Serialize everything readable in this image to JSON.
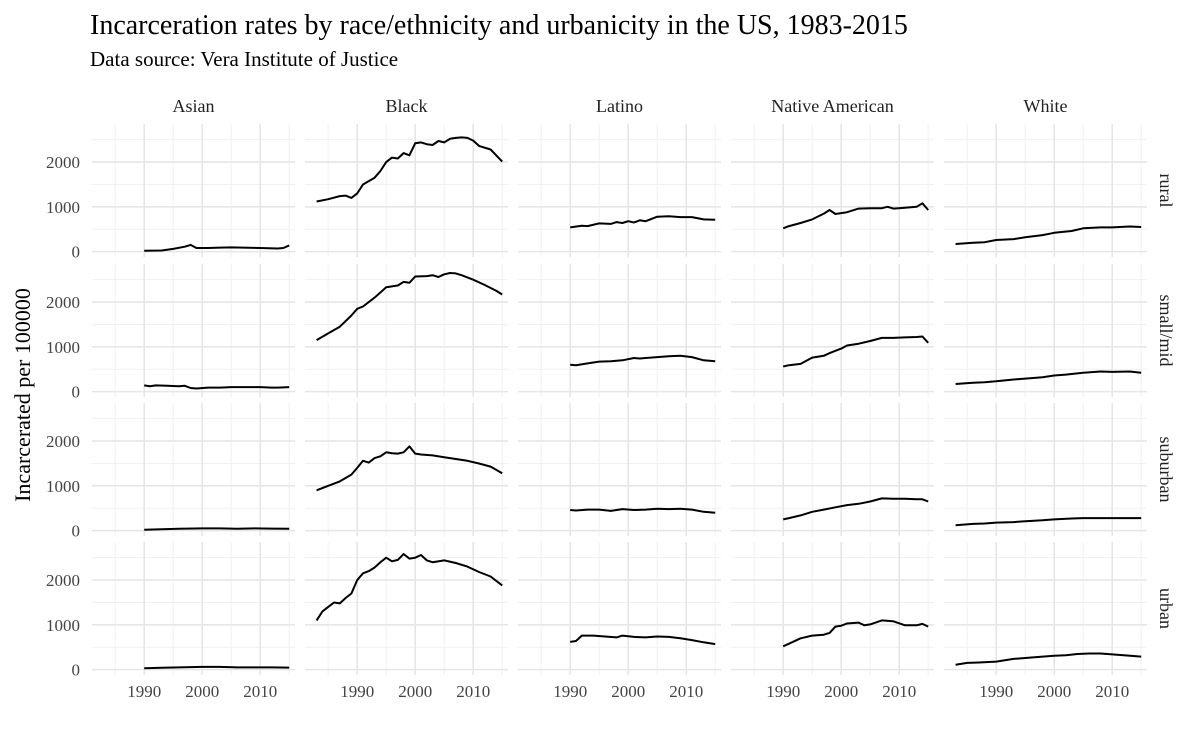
{
  "chart_data": {
    "type": "line",
    "title": "Incarceration rates by race/ethnicity and urbanicity in the US, 1983-2015",
    "subtitle": "Data source: Vera Institute of Justice",
    "xlabel": "",
    "ylabel": "Incarcerated per 100000",
    "xlim": [
      1981,
      2016
    ],
    "ylim": [
      -120,
      2850
    ],
    "x_ticks": [
      1990,
      2000,
      2010
    ],
    "y_ticks": [
      0,
      1000,
      2000
    ],
    "grid": true,
    "columns": [
      "Asian",
      "Black",
      "Latino",
      "Native American",
      "White"
    ],
    "rows": [
      "rural",
      "small/mid",
      "suburban",
      "urban"
    ],
    "panels": [
      {
        "row": "rural",
        "column": "Asian",
        "x": [
          1990,
          1993,
          1995,
          1997,
          1998,
          1999,
          2001,
          2003,
          2005,
          2007,
          2010,
          2013,
          2014,
          2015
        ],
        "y": [
          20,
          25,
          60,
          110,
          150,
          80,
          80,
          90,
          95,
          90,
          80,
          70,
          80,
          140
        ]
      },
      {
        "row": "rural",
        "column": "Black",
        "x": [
          1983,
          1985,
          1987,
          1988,
          1989,
          1990,
          1991,
          1993,
          1994,
          1995,
          1996,
          1997,
          1998,
          1999,
          2000,
          2001,
          2002,
          2003,
          2004,
          2005,
          2006,
          2007,
          2008,
          2009,
          2010,
          2011,
          2013,
          2015
        ],
        "y": [
          1120,
          1170,
          1240,
          1250,
          1200,
          1300,
          1500,
          1650,
          1800,
          2000,
          2100,
          2080,
          2200,
          2150,
          2420,
          2440,
          2400,
          2380,
          2470,
          2440,
          2520,
          2540,
          2550,
          2540,
          2480,
          2360,
          2280,
          2010
        ]
      },
      {
        "row": "rural",
        "column": "Latino",
        "x": [
          1990,
          1992,
          1993,
          1995,
          1997,
          1998,
          1999,
          2000,
          2001,
          2002,
          2003,
          2005,
          2007,
          2009,
          2011,
          2013,
          2015
        ],
        "y": [
          540,
          580,
          570,
          630,
          620,
          660,
          640,
          680,
          650,
          700,
          680,
          780,
          790,
          770,
          770,
          720,
          710
        ]
      },
      {
        "row": "rural",
        "column": "Native American",
        "x": [
          1990,
          1991,
          1993,
          1995,
          1997,
          1998,
          1999,
          2001,
          2003,
          2005,
          2007,
          2008,
          2009,
          2011,
          2013,
          2014,
          2015
        ],
        "y": [
          520,
          570,
          640,
          720,
          850,
          930,
          840,
          880,
          960,
          970,
          970,
          1000,
          960,
          980,
          1000,
          1080,
          930
        ]
      },
      {
        "row": "rural",
        "column": "White",
        "x": [
          1983,
          1986,
          1988,
          1990,
          1993,
          1995,
          1998,
          2000,
          2003,
          2005,
          2008,
          2010,
          2013,
          2015
        ],
        "y": [
          170,
          200,
          210,
          260,
          280,
          320,
          370,
          420,
          460,
          520,
          540,
          540,
          560,
          550
        ]
      },
      {
        "row": "small/mid",
        "column": "Asian",
        "x": [
          1990,
          1991,
          1992,
          1994,
          1996,
          1997,
          1998,
          1999,
          2001,
          2003,
          2005,
          2007,
          2010,
          2012,
          2013,
          2015
        ],
        "y": [
          140,
          120,
          140,
          130,
          120,
          130,
          80,
          70,
          90,
          90,
          100,
          100,
          100,
          90,
          90,
          100
        ]
      },
      {
        "row": "small/mid",
        "column": "Black",
        "x": [
          1983,
          1985,
          1987,
          1989,
          1990,
          1991,
          1993,
          1995,
          1997,
          1998,
          1999,
          2000,
          2002,
          2003,
          2004,
          2005,
          2006,
          2007,
          2008,
          2010,
          2012,
          2014,
          2015
        ],
        "y": [
          1150,
          1300,
          1450,
          1700,
          1850,
          1900,
          2100,
          2330,
          2370,
          2450,
          2430,
          2570,
          2580,
          2600,
          2560,
          2620,
          2650,
          2640,
          2600,
          2500,
          2380,
          2250,
          2170
        ]
      },
      {
        "row": "small/mid",
        "column": "Latino",
        "x": [
          1990,
          1991,
          1993,
          1995,
          1997,
          1999,
          2001,
          2002,
          2003,
          2005,
          2007,
          2009,
          2011,
          2013,
          2015
        ],
        "y": [
          600,
          590,
          630,
          670,
          680,
          700,
          750,
          740,
          750,
          770,
          790,
          800,
          770,
          700,
          680
        ]
      },
      {
        "row": "small/mid",
        "column": "Native American",
        "x": [
          1990,
          1991,
          1993,
          1995,
          1997,
          1998,
          2000,
          2001,
          2003,
          2005,
          2007,
          2009,
          2011,
          2013,
          2014,
          2015
        ],
        "y": [
          560,
          590,
          620,
          760,
          800,
          860,
          960,
          1030,
          1070,
          1130,
          1200,
          1200,
          1210,
          1220,
          1230,
          1090
        ]
      },
      {
        "row": "small/mid",
        "column": "White",
        "x": [
          1983,
          1986,
          1988,
          1990,
          1993,
          1995,
          1998,
          2000,
          2002,
          2005,
          2008,
          2010,
          2013,
          2015
        ],
        "y": [
          170,
          200,
          210,
          230,
          270,
          290,
          320,
          360,
          380,
          420,
          450,
          440,
          450,
          420
        ]
      },
      {
        "row": "suburban",
        "column": "Asian",
        "x": [
          1990,
          1993,
          1996,
          2000,
          2003,
          2006,
          2009,
          2012,
          2015
        ],
        "y": [
          20,
          30,
          40,
          50,
          50,
          40,
          50,
          45,
          40
        ]
      },
      {
        "row": "suburban",
        "column": "Black",
        "x": [
          1983,
          1985,
          1987,
          1989,
          1990,
          1991,
          1992,
          1993,
          1994,
          1995,
          1996,
          1997,
          1998,
          1999,
          2000,
          2001,
          2003,
          2005,
          2007,
          2009,
          2011,
          2013,
          2015
        ],
        "y": [
          900,
          1000,
          1100,
          1250,
          1400,
          1560,
          1520,
          1620,
          1660,
          1750,
          1730,
          1720,
          1750,
          1880,
          1720,
          1700,
          1680,
          1640,
          1600,
          1560,
          1500,
          1430,
          1280
        ]
      },
      {
        "row": "suburban",
        "column": "Latino",
        "x": [
          1990,
          1991,
          1993,
          1995,
          1997,
          1999,
          2001,
          2003,
          2005,
          2007,
          2009,
          2011,
          2013,
          2015
        ],
        "y": [
          460,
          450,
          470,
          470,
          440,
          480,
          460,
          470,
          490,
          480,
          490,
          470,
          420,
          400
        ]
      },
      {
        "row": "suburban",
        "column": "Native American",
        "x": [
          1990,
          1991,
          1993,
          1995,
          1997,
          1999,
          2001,
          2003,
          2005,
          2007,
          2009,
          2011,
          2013,
          2014,
          2015
        ],
        "y": [
          250,
          280,
          340,
          420,
          470,
          520,
          570,
          600,
          650,
          720,
          710,
          710,
          700,
          700,
          650
        ]
      },
      {
        "row": "suburban",
        "column": "White",
        "x": [
          1983,
          1986,
          1988,
          1990,
          1993,
          1995,
          1998,
          2000,
          2003,
          2005,
          2008,
          2010,
          2013,
          2015
        ],
        "y": [
          120,
          150,
          160,
          180,
          190,
          210,
          230,
          250,
          270,
          280,
          280,
          280,
          280,
          280
        ]
      },
      {
        "row": "urban",
        "column": "Asian",
        "x": [
          1990,
          1993,
          1996,
          2000,
          2003,
          2006,
          2009,
          2012,
          2015
        ],
        "y": [
          30,
          40,
          50,
          60,
          60,
          50,
          50,
          50,
          45
        ]
      },
      {
        "row": "urban",
        "column": "Black",
        "x": [
          1983,
          1984,
          1985,
          1986,
          1987,
          1988,
          1989,
          1990,
          1991,
          1992,
          1993,
          1994,
          1995,
          1996,
          1997,
          1998,
          1999,
          2000,
          2001,
          2002,
          2003,
          2005,
          2007,
          2009,
          2011,
          2013,
          2015
        ],
        "y": [
          1100,
          1300,
          1400,
          1500,
          1480,
          1600,
          1700,
          2000,
          2150,
          2200,
          2280,
          2400,
          2500,
          2420,
          2450,
          2580,
          2480,
          2500,
          2560,
          2440,
          2400,
          2440,
          2380,
          2300,
          2180,
          2080,
          1880
        ]
      },
      {
        "row": "urban",
        "column": "Latino",
        "x": [
          1990,
          1991,
          1992,
          1994,
          1996,
          1998,
          1999,
          2001,
          2003,
          2005,
          2007,
          2009,
          2011,
          2013,
          2015
        ],
        "y": [
          620,
          640,
          760,
          760,
          740,
          720,
          760,
          730,
          720,
          740,
          730,
          700,
          660,
          610,
          570
        ]
      },
      {
        "row": "urban",
        "column": "Native American",
        "x": [
          1990,
          1991,
          1993,
          1995,
          1997,
          1998,
          1999,
          2000,
          2001,
          2003,
          2004,
          2005,
          2007,
          2009,
          2011,
          2013,
          2014,
          2015
        ],
        "y": [
          520,
          580,
          700,
          760,
          780,
          820,
          960,
          980,
          1030,
          1050,
          990,
          1010,
          1100,
          1080,
          990,
          990,
          1020,
          960
        ]
      },
      {
        "row": "urban",
        "column": "White",
        "x": [
          1983,
          1985,
          1987,
          1990,
          1993,
          1995,
          1998,
          2000,
          2002,
          2004,
          2006,
          2008,
          2010,
          2012,
          2015
        ],
        "y": [
          110,
          150,
          160,
          180,
          240,
          260,
          290,
          310,
          320,
          350,
          360,
          360,
          340,
          320,
          290
        ]
      }
    ]
  }
}
